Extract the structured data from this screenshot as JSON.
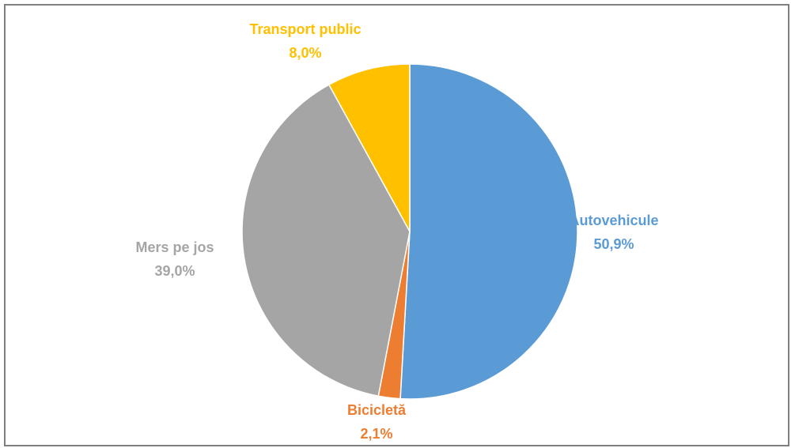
{
  "chart_data": {
    "type": "pie",
    "categories": [
      "Autovehicule",
      "Bicicletă",
      "Mers pe jos",
      "Transport public"
    ],
    "values": [
      50.9,
      2.1,
      39.0,
      8.0
    ],
    "value_labels": [
      "50,9%",
      "2,1%",
      "39,0%",
      "8,0%"
    ],
    "colors": [
      "#5b9bd5",
      "#ed7d31",
      "#a5a5a5",
      "#ffc000"
    ],
    "start_angle_deg": 0,
    "direction": "clockwise",
    "labels": "outside, category name above percentage, colored like slice"
  }
}
